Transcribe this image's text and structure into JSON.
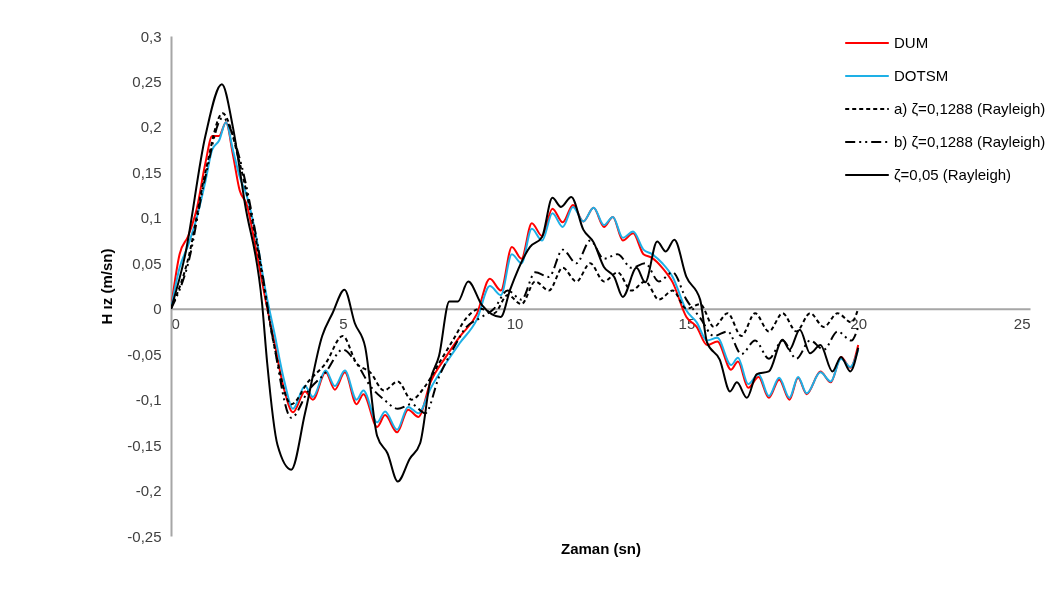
{
  "chart_data": {
    "type": "line",
    "xlabel": "Zaman (sn)",
    "ylabel": "H ız (m/sn)",
    "xlim": [
      0,
      25
    ],
    "xticks": [
      0,
      5,
      10,
      15,
      20,
      25
    ],
    "ylim": [
      -0.25,
      0.3
    ],
    "yticks": [
      {
        "value": -0.25,
        "label": "-0,25"
      },
      {
        "value": -0.2,
        "label": "-0,2"
      },
      {
        "value": -0.15,
        "label": "-0,15"
      },
      {
        "value": -0.1,
        "label": "-0,1"
      },
      {
        "value": -0.05,
        "label": "-0,05"
      },
      0,
      {
        "value": 0.05,
        "label": "0,05"
      },
      {
        "value": 0.1,
        "label": "0,1"
      },
      {
        "value": 0.15,
        "label": "0,15"
      },
      {
        "value": 0.2,
        "label": "0,2"
      },
      {
        "value": 0.25,
        "label": "0,25"
      },
      {
        "value": 0.3,
        "label": "0,3"
      }
    ],
    "legend": "top right",
    "series": [
      {
        "name": "DUM",
        "color": "#ff0000",
        "line_style": "solid",
        "x": [
          0,
          0.25,
          0.5,
          0.75,
          1.0,
          1.2,
          1.4,
          1.6,
          1.8,
          2.0,
          2.2,
          2.5,
          2.75,
          3.0,
          3.3,
          3.55,
          3.9,
          4.13,
          4.5,
          4.77,
          5.06,
          5.4,
          5.6,
          6.0,
          6.23,
          6.58,
          6.9,
          7.2,
          7.55,
          8.0,
          8.4,
          8.9,
          9.28,
          9.6,
          9.92,
          10.2,
          10.5,
          10.8,
          11.1,
          11.4,
          11.7,
          12.0,
          12.3,
          12.6,
          12.86,
          13.15,
          13.45,
          13.75,
          14.0,
          14.3,
          14.6,
          15.0,
          15.3,
          15.6,
          15.9,
          16.3,
          16.5,
          16.8,
          17.1,
          17.4,
          17.7,
          18.0,
          18.25,
          18.5,
          18.9,
          19.2,
          19.5,
          19.77,
          20
        ],
        "values": [
          0,
          0.06,
          0.08,
          0.11,
          0.16,
          0.19,
          0.19,
          0.205,
          0.17,
          0.13,
          0.115,
          0.06,
          0.01,
          -0.035,
          -0.09,
          -0.114,
          -0.091,
          -0.1,
          -0.07,
          -0.089,
          -0.07,
          -0.105,
          -0.094,
          -0.13,
          -0.117,
          -0.136,
          -0.111,
          -0.119,
          -0.081,
          -0.053,
          -0.031,
          -0.006,
          0.033,
          0.02,
          0.068,
          0.055,
          0.094,
          0.08,
          0.11,
          0.095,
          0.114,
          0.096,
          0.111,
          0.09,
          0.101,
          0.075,
          0.083,
          0.06,
          0.056,
          0.045,
          0.029,
          -0.009,
          -0.02,
          -0.04,
          -0.036,
          -0.067,
          -0.058,
          -0.087,
          -0.075,
          -0.098,
          -0.078,
          -0.1,
          -0.076,
          -0.094,
          -0.069,
          -0.081,
          -0.053,
          -0.065,
          -0.04
        ]
      },
      {
        "name": "DOTSM",
        "color": "#1eb0e6",
        "line_style": "solid",
        "x": [
          0,
          0.25,
          0.5,
          0.75,
          1.0,
          1.2,
          1.4,
          1.6,
          1.8,
          2.0,
          2.2,
          2.5,
          2.75,
          3.0,
          3.3,
          3.55,
          3.9,
          4.13,
          4.5,
          4.77,
          5.06,
          5.4,
          5.6,
          6.0,
          6.23,
          6.58,
          6.9,
          7.2,
          7.55,
          8.0,
          8.4,
          8.9,
          9.28,
          9.6,
          9.92,
          10.2,
          10.5,
          10.8,
          11.1,
          11.4,
          11.7,
          12.0,
          12.3,
          12.6,
          12.86,
          13.15,
          13.45,
          13.75,
          14.0,
          14.3,
          14.6,
          15.0,
          15.3,
          15.6,
          15.9,
          16.3,
          16.5,
          16.8,
          17.1,
          17.4,
          17.7,
          18.0,
          18.25,
          18.5,
          18.9,
          19.2,
          19.5,
          19.77,
          20
        ],
        "values": [
          0,
          0.045,
          0.07,
          0.1,
          0.14,
          0.175,
          0.185,
          0.205,
          0.175,
          0.145,
          0.125,
          0.075,
          0.02,
          -0.025,
          -0.08,
          -0.11,
          -0.085,
          -0.097,
          -0.068,
          -0.085,
          -0.068,
          -0.1,
          -0.09,
          -0.125,
          -0.113,
          -0.133,
          -0.108,
          -0.115,
          -0.088,
          -0.06,
          -0.038,
          -0.012,
          0.025,
          0.015,
          0.06,
          0.05,
          0.088,
          0.075,
          0.105,
          0.09,
          0.112,
          0.096,
          0.111,
          0.092,
          0.101,
          0.078,
          0.085,
          0.065,
          0.06,
          0.05,
          0.035,
          -0.002,
          -0.015,
          -0.035,
          -0.032,
          -0.062,
          -0.054,
          -0.083,
          -0.072,
          -0.096,
          -0.076,
          -0.098,
          -0.075,
          -0.093,
          -0.07,
          -0.08,
          -0.055,
          -0.064,
          -0.045
        ]
      },
      {
        "name": "a) ζ=0,1288 (Rayleigh)",
        "color": "#000000",
        "line_style": "dashed",
        "x": [
          0,
          0.5,
          1.0,
          1.5,
          2.0,
          2.5,
          3.0,
          3.5,
          4.0,
          4.5,
          5.0,
          5.4,
          5.8,
          6.2,
          6.6,
          7.0,
          7.4,
          7.8,
          8.2,
          8.6,
          9.0,
          9.4,
          9.8,
          10.2,
          10.6,
          11.0,
          11.4,
          11.8,
          12.2,
          12.6,
          13.0,
          13.4,
          13.8,
          14.2,
          14.6,
          15.0,
          15.4,
          15.8,
          16.2,
          16.6,
          17.0,
          17.4,
          17.8,
          18.2,
          18.6,
          19.0,
          19.4,
          19.8,
          20
        ],
        "values": [
          0,
          0.055,
          0.15,
          0.215,
          0.16,
          0.07,
          -0.04,
          -0.105,
          -0.08,
          -0.06,
          -0.03,
          -0.06,
          -0.07,
          -0.09,
          -0.08,
          -0.1,
          -0.085,
          -0.06,
          -0.035,
          -0.01,
          0,
          -0.005,
          0.015,
          0.005,
          0.03,
          0.02,
          0.045,
          0.03,
          0.05,
          0.03,
          0.04,
          0.02,
          0.03,
          0.01,
          0.02,
          0,
          0.005,
          -0.02,
          -0.005,
          -0.03,
          -0.005,
          -0.025,
          -0.005,
          -0.025,
          -0.005,
          -0.02,
          -0.005,
          -0.015,
          0
        ]
      },
      {
        "name": "b) ζ=0,1288 (Rayleigh)",
        "color": "#000000",
        "line_style": "dashdot",
        "x": [
          0,
          0.5,
          1.0,
          1.5,
          2.0,
          2.5,
          3.0,
          3.5,
          4.0,
          4.5,
          5.0,
          5.4,
          5.8,
          6.2,
          6.6,
          7.0,
          7.4,
          7.8,
          8.2,
          8.6,
          9.0,
          9.4,
          9.8,
          10.2,
          10.6,
          11.0,
          11.4,
          11.8,
          12.2,
          12.6,
          13.0,
          13.4,
          13.8,
          14.2,
          14.6,
          15.0,
          15.4,
          15.8,
          16.2,
          16.6,
          17.0,
          17.4,
          17.8,
          18.2,
          18.6,
          19.0,
          19.4,
          19.8,
          20
        ],
        "values": [
          0,
          0.05,
          0.145,
          0.21,
          0.165,
          0.075,
          -0.04,
          -0.12,
          -0.09,
          -0.07,
          -0.045,
          -0.06,
          -0.085,
          -0.1,
          -0.11,
          -0.105,
          -0.115,
          -0.075,
          -0.045,
          -0.02,
          -0.01,
          0,
          0.02,
          0.01,
          0.04,
          0.035,
          0.065,
          0.05,
          0.075,
          0.055,
          0.06,
          0.045,
          0.05,
          0.03,
          0.04,
          0.01,
          -0.01,
          -0.03,
          -0.025,
          -0.05,
          -0.035,
          -0.055,
          -0.035,
          -0.055,
          -0.035,
          -0.045,
          -0.025,
          -0.035,
          -0.02
        ]
      },
      {
        "name": "ζ=0,05 (Rayleigh)",
        "color": "#000000",
        "line_style": "solid",
        "x": [
          0,
          0.4,
          1.0,
          1.48,
          1.8,
          2.15,
          2.65,
          2.8,
          3.1,
          3.5,
          3.9,
          4.4,
          4.7,
          5.05,
          5.35,
          5.65,
          6.0,
          6.3,
          6.6,
          6.95,
          7.25,
          7.55,
          7.8,
          8.1,
          8.35,
          8.65,
          9.05,
          9.6,
          9.87,
          10.45,
          10.8,
          11.1,
          11.35,
          11.65,
          12.0,
          12.3,
          12.6,
          12.9,
          13.15,
          13.55,
          13.8,
          14.15,
          14.4,
          14.65,
          15.0,
          15.4,
          15.6,
          15.97,
          16.27,
          16.47,
          16.76,
          17.05,
          17.4,
          17.8,
          18.0,
          18.3,
          18.6,
          18.9,
          19.25,
          19.5,
          19.77,
          20
        ],
        "values": [
          0,
          0.057,
          0.19,
          0.247,
          0.2,
          0.116,
          0.006,
          -0.06,
          -0.15,
          -0.177,
          -0.115,
          -0.03,
          -0.005,
          0.021,
          -0.016,
          -0.042,
          -0.14,
          -0.159,
          -0.19,
          -0.165,
          -0.148,
          -0.078,
          -0.052,
          0.008,
          0.008,
          0.03,
          0.004,
          -0.009,
          0.021,
          0.068,
          0.079,
          0.122,
          0.112,
          0.123,
          0.087,
          0.073,
          0.046,
          0.035,
          0.013,
          0.045,
          0.029,
          0.074,
          0.063,
          0.076,
          0.035,
          0.01,
          -0.037,
          -0.056,
          -0.091,
          -0.081,
          -0.098,
          -0.072,
          -0.069,
          -0.034,
          -0.045,
          -0.023,
          -0.049,
          -0.04,
          -0.069,
          -0.053,
          -0.069,
          -0.043
        ]
      }
    ]
  }
}
